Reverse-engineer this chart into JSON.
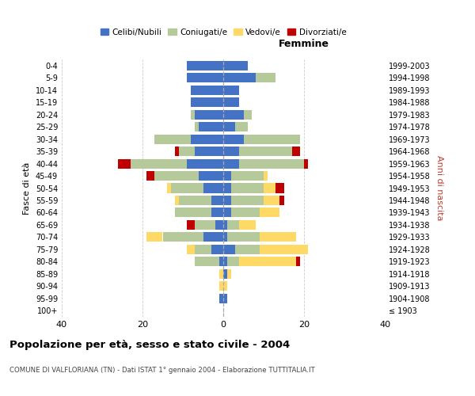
{
  "age_groups": [
    "100+",
    "95-99",
    "90-94",
    "85-89",
    "80-84",
    "75-79",
    "70-74",
    "65-69",
    "60-64",
    "55-59",
    "50-54",
    "45-49",
    "40-44",
    "35-39",
    "30-34",
    "25-29",
    "20-24",
    "15-19",
    "10-14",
    "5-9",
    "0-4"
  ],
  "birth_years": [
    "≤ 1903",
    "1904-1908",
    "1909-1913",
    "1914-1918",
    "1919-1923",
    "1924-1928",
    "1929-1933",
    "1934-1938",
    "1939-1943",
    "1944-1948",
    "1949-1953",
    "1954-1958",
    "1959-1963",
    "1964-1968",
    "1969-1973",
    "1974-1978",
    "1979-1983",
    "1984-1988",
    "1989-1993",
    "1994-1998",
    "1999-2003"
  ],
  "males": {
    "celibi": [
      0,
      1,
      0,
      0,
      1,
      3,
      5,
      2,
      3,
      3,
      5,
      6,
      9,
      7,
      8,
      6,
      7,
      8,
      8,
      9,
      9
    ],
    "coniugati": [
      0,
      0,
      0,
      0,
      6,
      4,
      10,
      5,
      9,
      8,
      8,
      11,
      14,
      4,
      9,
      1,
      1,
      0,
      0,
      0,
      0
    ],
    "vedovi": [
      0,
      0,
      1,
      1,
      0,
      2,
      4,
      0,
      0,
      1,
      1,
      0,
      0,
      0,
      0,
      0,
      0,
      0,
      0,
      0,
      0
    ],
    "divorziati": [
      0,
      0,
      0,
      0,
      0,
      0,
      0,
      2,
      0,
      0,
      0,
      2,
      3,
      1,
      0,
      0,
      0,
      0,
      0,
      0,
      0
    ]
  },
  "females": {
    "nubili": [
      0,
      1,
      0,
      1,
      1,
      3,
      1,
      1,
      2,
      2,
      2,
      2,
      4,
      4,
      5,
      3,
      5,
      4,
      4,
      8,
      6
    ],
    "coniugate": [
      0,
      0,
      0,
      0,
      3,
      6,
      8,
      3,
      7,
      8,
      8,
      8,
      16,
      13,
      14,
      3,
      2,
      0,
      0,
      5,
      0
    ],
    "vedove": [
      0,
      0,
      1,
      1,
      14,
      12,
      9,
      4,
      5,
      4,
      3,
      1,
      0,
      0,
      0,
      0,
      0,
      0,
      0,
      0,
      0
    ],
    "divorziate": [
      0,
      0,
      0,
      0,
      1,
      0,
      0,
      0,
      0,
      1,
      2,
      0,
      1,
      2,
      0,
      0,
      0,
      0,
      0,
      0,
      0
    ]
  },
  "colors": {
    "celibi_nubili": "#4472C4",
    "coniugati": "#b5c99a",
    "vedovi": "#ffd966",
    "divorziati": "#c00000"
  },
  "title": "Popolazione per età, sesso e stato civile - 2004",
  "subtitle": "COMUNE DI VALFLORIANA (TN) - Dati ISTAT 1° gennaio 2004 - Elaborazione TUTTITALIA.IT",
  "xlabel_right": "Femmine",
  "ylabel_left": "Fasce di età",
  "ylabel_right": "Anni di nascita",
  "xlim": 40,
  "bg_color": "#ffffff",
  "grid_color": "#cccccc"
}
